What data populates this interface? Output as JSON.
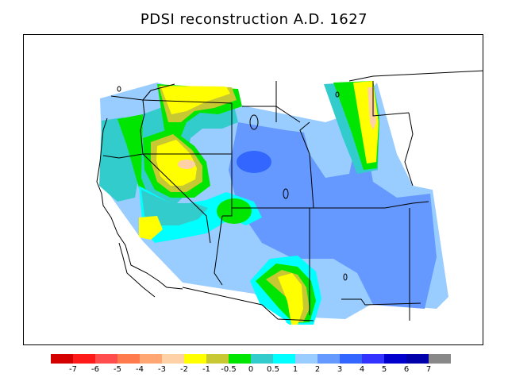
{
  "title": "PDSI reconstruction A.D. 1627",
  "legend": {
    "colors": [
      "#d40000",
      "#ff1a1a",
      "#ff4d4d",
      "#ff7a4d",
      "#ffa673",
      "#ffd1a6",
      "#ffff00",
      "#c8c832",
      "#00e600",
      "#33cccc",
      "#00ffff",
      "#99ccff",
      "#6699ff",
      "#3366ff",
      "#3333ff",
      "#0000cc",
      "#0000aa",
      "#888888"
    ],
    "labels": [
      "-7",
      "-6",
      "-5",
      "-4",
      "-3",
      "-2",
      "-1",
      "-0.5",
      "0",
      "0.5",
      "1",
      "2",
      "3",
      "4",
      "5",
      "6",
      "7"
    ]
  },
  "map": {
    "background_color": "#99ccff",
    "region": "Western United States"
  }
}
